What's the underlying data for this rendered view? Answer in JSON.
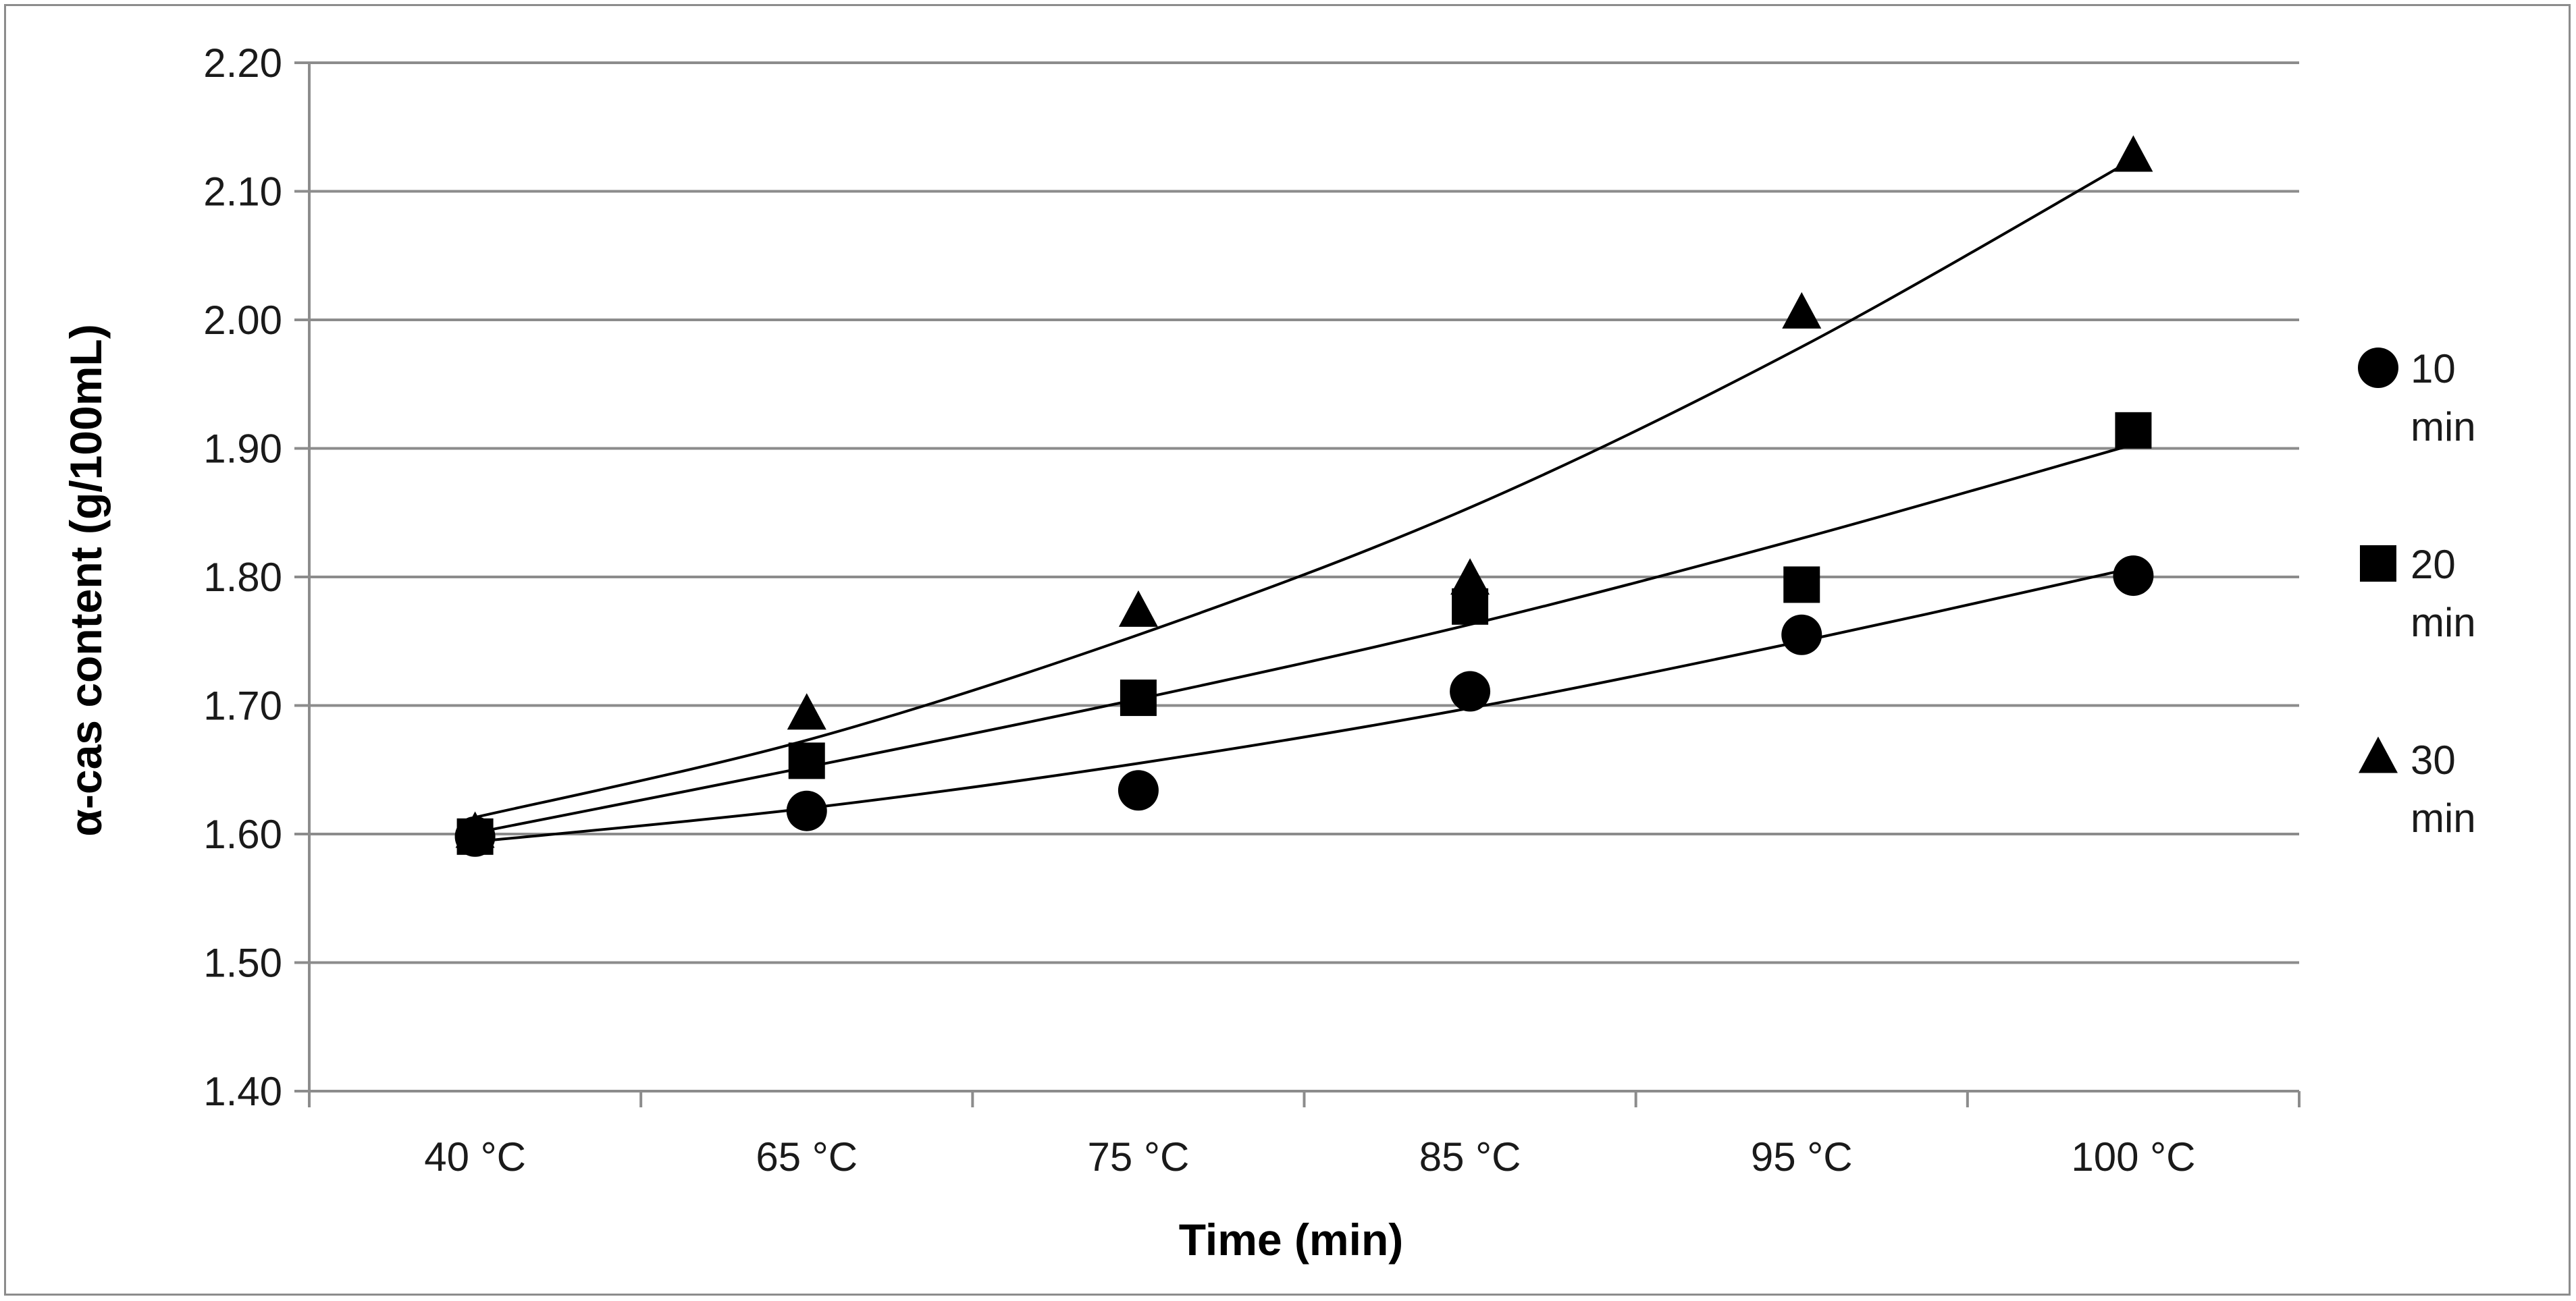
{
  "chart_data": {
    "type": "scatter",
    "title": "",
    "xlabel": "Time (min)",
    "ylabel": "α-cas content (g/100mL)",
    "categories": [
      "40 °C",
      "65 °C",
      "75 °C",
      "85 °C",
      "95 °C",
      "100 °C"
    ],
    "ylim": [
      1.4,
      2.2
    ],
    "yticks": [
      "1.40",
      "1.50",
      "1.60",
      "1.70",
      "1.80",
      "1.90",
      "2.00",
      "2.10",
      "2.20"
    ],
    "ytick_values": [
      1.4,
      1.5,
      1.6,
      1.7,
      1.8,
      1.9,
      2.0,
      2.1,
      2.2
    ],
    "grid": true,
    "legend_position": "right",
    "series": [
      {
        "name": "10 min",
        "marker": "circle",
        "values": [
          1.598,
          1.618,
          1.634,
          1.711,
          1.755,
          1.801
        ],
        "trend": [
          1.594,
          1.62,
          1.655,
          1.698,
          1.75,
          1.807
        ]
      },
      {
        "name": "20 min",
        "marker": "square",
        "values": [
          1.598,
          1.657,
          1.706,
          1.777,
          1.794,
          1.914
        ],
        "trend": [
          1.601,
          1.652,
          1.705,
          1.763,
          1.83,
          1.903
        ]
      },
      {
        "name": "30 min",
        "marker": "triangle",
        "values": [
          1.6,
          1.692,
          1.772,
          1.797,
          2.004,
          2.126
        ],
        "trend": [
          1.613,
          1.673,
          1.755,
          1.854,
          1.979,
          2.125
        ]
      }
    ],
    "legend": [
      {
        "line1": "10",
        "line2": "min"
      },
      {
        "line1": "20",
        "line2": "min"
      },
      {
        "line1": "30",
        "line2": "min"
      }
    ],
    "color": "#000000",
    "grid_color": "#8c8c8c"
  }
}
